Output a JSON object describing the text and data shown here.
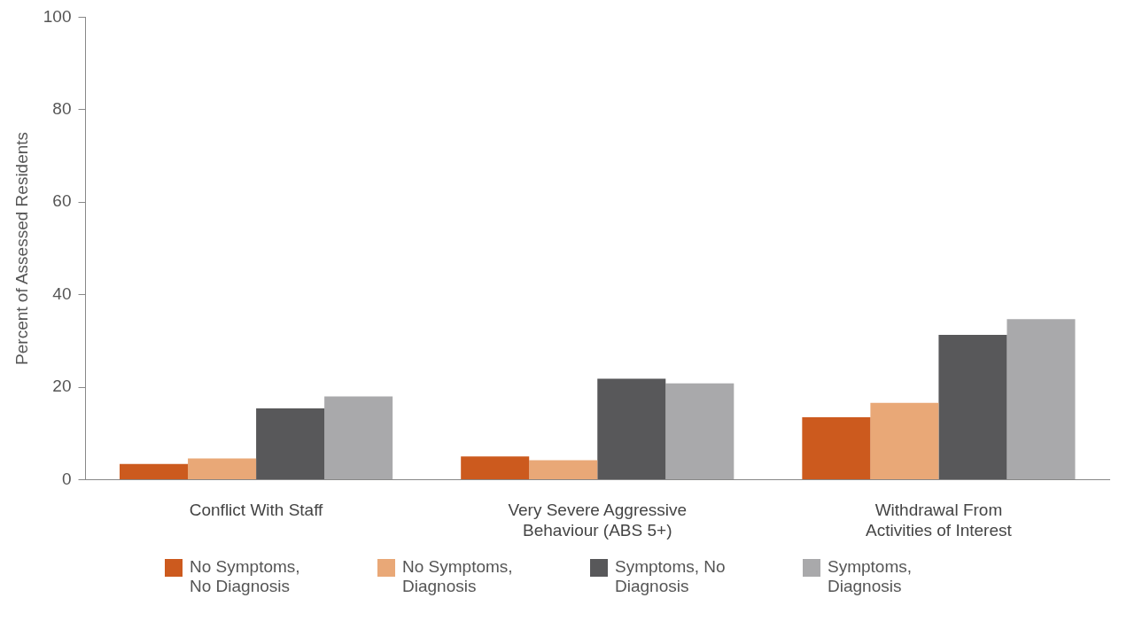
{
  "chart_data": {
    "type": "bar",
    "ylabel": "Percent of Assessed Residents",
    "categories": [
      "Conflict With Staff",
      "Very Severe Aggressive Behaviour (ABS 5+)",
      "Withdrawal From Activities of Interest"
    ],
    "series": [
      {
        "name": "No Symptoms, No Diagnosis",
        "color": "#cc5a1e",
        "values": [
          3.4,
          5,
          13.5
        ]
      },
      {
        "name": "No Symptoms, Diagnosis",
        "color": "#e9a877",
        "values": [
          4.6,
          4.2,
          16.6
        ]
      },
      {
        "name": "Symptoms, No Diagnosis",
        "color": "#58585a",
        "values": [
          15.4,
          21.8,
          31.3
        ]
      },
      {
        "name": "Symptoms, Diagnosis",
        "color": "#a9a9ab",
        "values": [
          18,
          20.8,
          34.7
        ]
      }
    ],
    "ylim": [
      0,
      100
    ],
    "yticks": [
      0,
      20,
      40,
      60,
      80,
      100
    ],
    "grid": false,
    "legend": "bottom"
  }
}
